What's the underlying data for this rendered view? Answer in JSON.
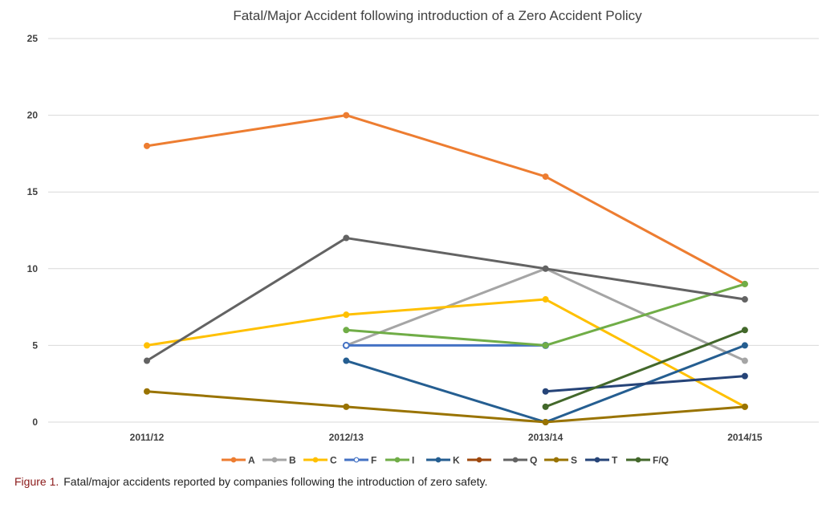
{
  "chart_data": {
    "type": "line",
    "title": "Fatal/Major Accident following introduction of a Zero Accident Policy",
    "xlabel": "",
    "ylabel": "",
    "categories": [
      "2011/12",
      "2012/13",
      "2013/14",
      "2014/15"
    ],
    "ylim": [
      0,
      25
    ],
    "yticks": [
      "0",
      "5",
      "10",
      "15",
      "20",
      "25"
    ],
    "grid": true,
    "legend_position": "bottom",
    "series": [
      {
        "name": "A",
        "color": "#ED7D31",
        "values": [
          18,
          20,
          16,
          9
        ]
      },
      {
        "name": "B",
        "color": "#A5A5A5",
        "values": [
          null,
          5,
          10,
          4
        ]
      },
      {
        "name": "C",
        "color": "#FFC000",
        "values": [
          5,
          7,
          8,
          1
        ]
      },
      {
        "name": "F",
        "color": "#4472C4",
        "values": [
          null,
          5,
          5,
          null
        ],
        "hollow": true
      },
      {
        "name": "I",
        "color": "#70AD47",
        "values": [
          null,
          6,
          5,
          9
        ]
      },
      {
        "name": "K",
        "color": "#255E91",
        "values": [
          null,
          4,
          0,
          5
        ]
      },
      {
        "name": "",
        "color": "#9E480E",
        "values": [
          null,
          null,
          null,
          null
        ]
      },
      {
        "name": "Q",
        "color": "#636363",
        "values": [
          4,
          12,
          10,
          8
        ]
      },
      {
        "name": "S",
        "color": "#997300",
        "values": [
          2,
          1,
          0,
          1
        ]
      },
      {
        "name": "T",
        "color": "#264478",
        "values": [
          null,
          null,
          2,
          3
        ]
      },
      {
        "name": "F/Q",
        "color": "#43682B",
        "values": [
          null,
          null,
          1,
          6
        ]
      }
    ]
  },
  "caption": {
    "label": "Figure 1.",
    "text": "Fatal/major accidents reported by companies following the introduction of zero safety."
  }
}
